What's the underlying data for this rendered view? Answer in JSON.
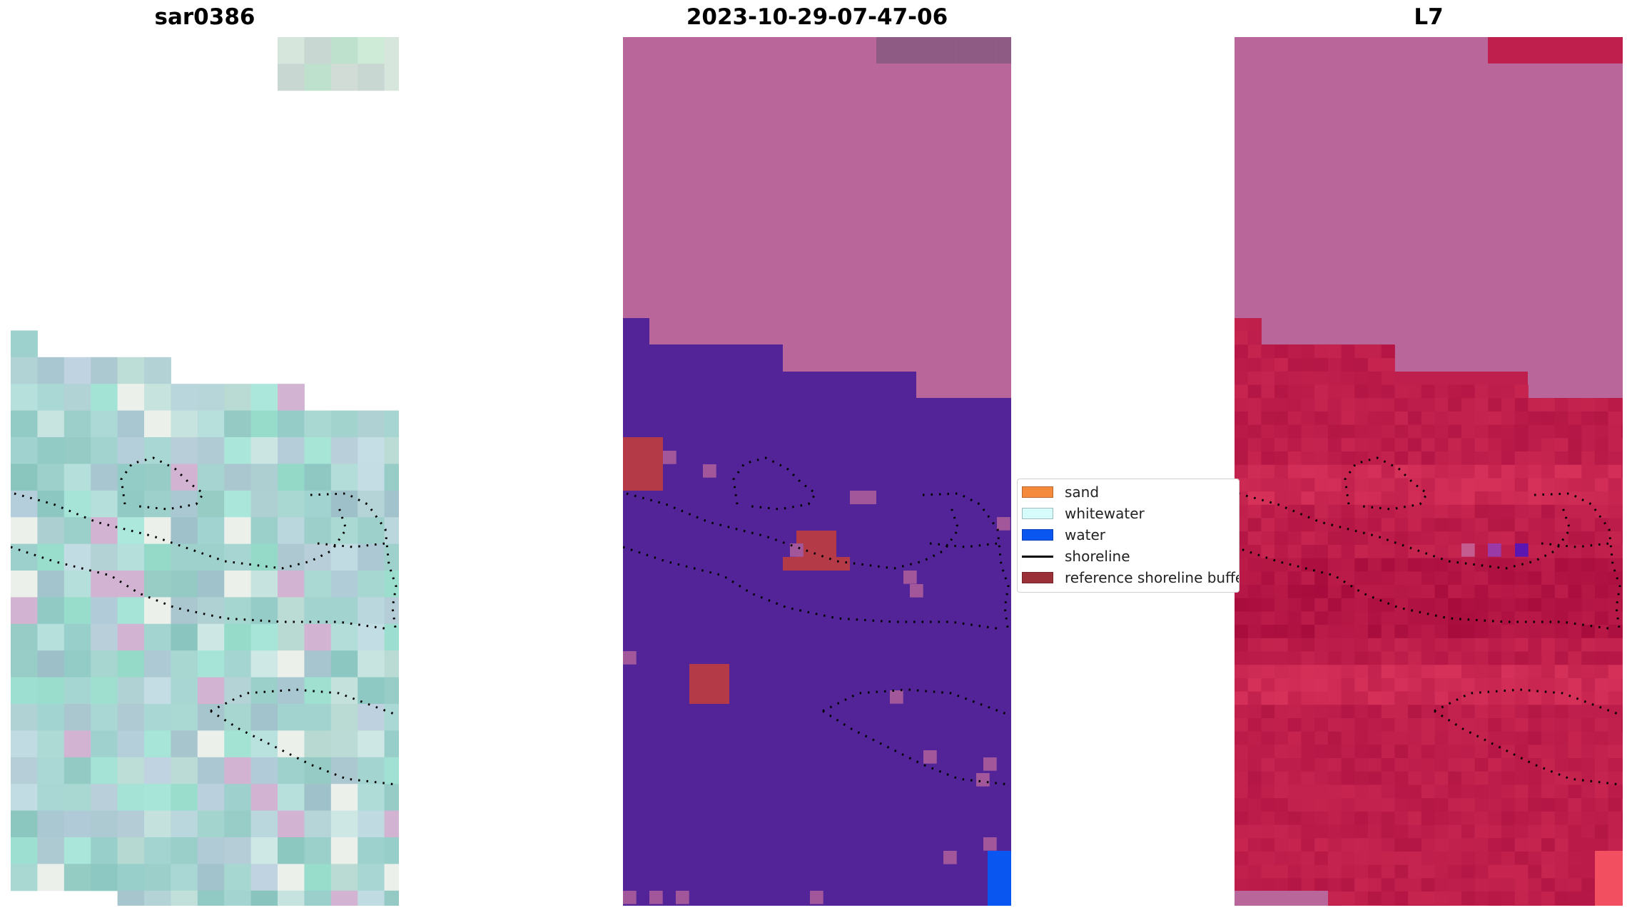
{
  "panels": [
    {
      "title": "sar0386"
    },
    {
      "title": "2023-10-29-07-47-06"
    },
    {
      "title": "L7"
    }
  ],
  "legend": {
    "items": [
      {
        "label": "sand",
        "color": "#f58a3c",
        "kind": "patch"
      },
      {
        "label": "whitewater",
        "color": "#d6fbfb",
        "kind": "patch"
      },
      {
        "label": "water",
        "color": "#0a56f0",
        "kind": "patch"
      },
      {
        "label": "shoreline",
        "color": "#000000",
        "kind": "line"
      },
      {
        "label": "reference shoreline buffer",
        "color": "#9b3038",
        "kind": "patch"
      }
    ]
  },
  "colors": {
    "no_data": "#b9679a",
    "water_class": "#522498",
    "buffer": "#b53a48",
    "water_index_high": "#be1f4c",
    "rgb_base": "#a9d5d3"
  }
}
